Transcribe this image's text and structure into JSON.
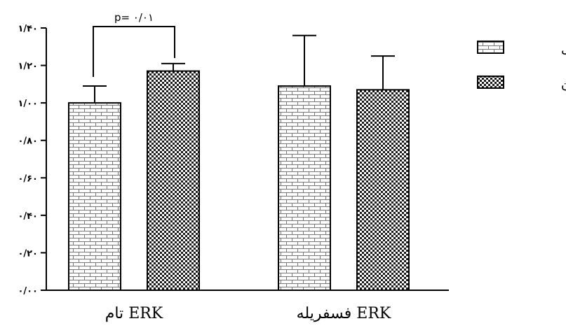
{
  "chart_data": {
    "type": "bar",
    "categories": [
      "ERK تام",
      "ERK فسفریله"
    ],
    "series": [
      {
        "name": "کنترل",
        "pattern": "bricks",
        "values": [
          1.0,
          1.09
        ],
        "errors": [
          0.09,
          0.27
        ]
      },
      {
        "name": "تمرین",
        "pattern": "checker",
        "values": [
          1.17,
          1.07
        ],
        "errors": [
          0.04,
          0.18
        ]
      }
    ],
    "ylim": [
      0,
      1.4
    ],
    "yticks": [
      0,
      0.2,
      0.4,
      0.6,
      0.8,
      1.0,
      1.2,
      1.4
    ],
    "ytick_labels": [
      "۰/۰۰",
      "۰/۲۰",
      "۰/۴۰",
      "۰/۶۰",
      "۰/۸۰",
      "۱/۰۰",
      "۱/۲۰",
      "۱/۴۰"
    ],
    "annotation": {
      "text": "p= ۰/۰۱",
      "category_index": 0
    },
    "legend_position": "top-right",
    "colors": {
      "bar_fill": "#ffffff",
      "stroke": "#000000",
      "pattern_line": "#555555"
    }
  }
}
